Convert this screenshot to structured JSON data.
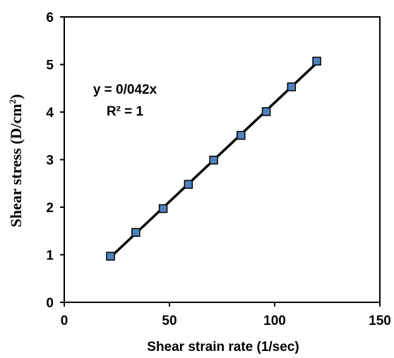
{
  "chart_data": {
    "type": "scatter",
    "xlabel": "Shear strain rate (1/sec)",
    "ylabel_main": "Shear stress (D/cm",
    "ylabel_sup": "2",
    "ylabel_close": ")",
    "xlim": [
      0,
      150
    ],
    "ylim": [
      0,
      6
    ],
    "x_ticks": [
      "0",
      "50",
      "100",
      "150"
    ],
    "y_ticks": [
      "0",
      "1",
      "2",
      "3",
      "4",
      "5",
      "6"
    ],
    "grid": false,
    "legend": "none",
    "series": [
      {
        "x": [
          22,
          34,
          47,
          59,
          71,
          84,
          96,
          108,
          120
        ],
        "y": [
          0.97,
          1.47,
          1.97,
          2.48,
          2.99,
          3.51,
          4.01,
          4.53,
          5.07
        ],
        "marker": "square",
        "marker_color": "#4f81bd",
        "trendline": "linear",
        "trendline_color": "#000000"
      }
    ],
    "annotations": {
      "equation": "y = 0/042x",
      "r_squared": "R² = 1"
    }
  }
}
